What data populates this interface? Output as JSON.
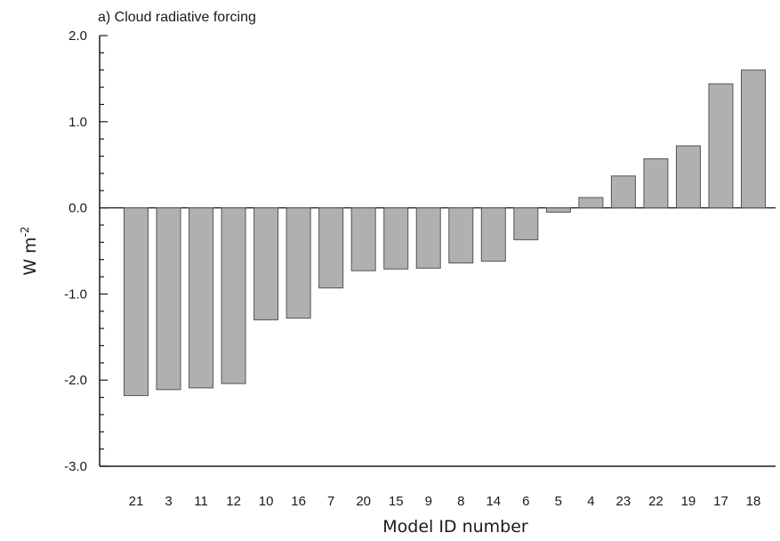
{
  "chart_data": {
    "type": "bar",
    "title": "a) Cloud radiative forcing",
    "xlabel": "Model ID number",
    "ylabel": "W m",
    "ylabel_superscript": "-2",
    "ylim": [
      -3.0,
      2.0
    ],
    "yticks": [
      "2.0",
      "1.0",
      "0.0",
      "-1.0",
      "-2.0",
      "-3.0"
    ],
    "ytick_values": [
      2.0,
      1.0,
      0.0,
      -1.0,
      -2.0,
      -3.0
    ],
    "grid": false,
    "bar_color": "#b0b0b0",
    "categories": [
      "21",
      "3",
      "11",
      "12",
      "10",
      "16",
      "7",
      "20",
      "15",
      "9",
      "8",
      "14",
      "6",
      "5",
      "4",
      "23",
      "22",
      "19",
      "17",
      "18"
    ],
    "values": [
      -2.18,
      -2.11,
      -2.09,
      -2.04,
      -1.3,
      -1.28,
      -0.93,
      -0.73,
      -0.71,
      -0.7,
      -0.64,
      -0.62,
      -0.37,
      -0.05,
      0.12,
      0.37,
      0.57,
      0.72,
      1.44,
      1.6
    ]
  }
}
